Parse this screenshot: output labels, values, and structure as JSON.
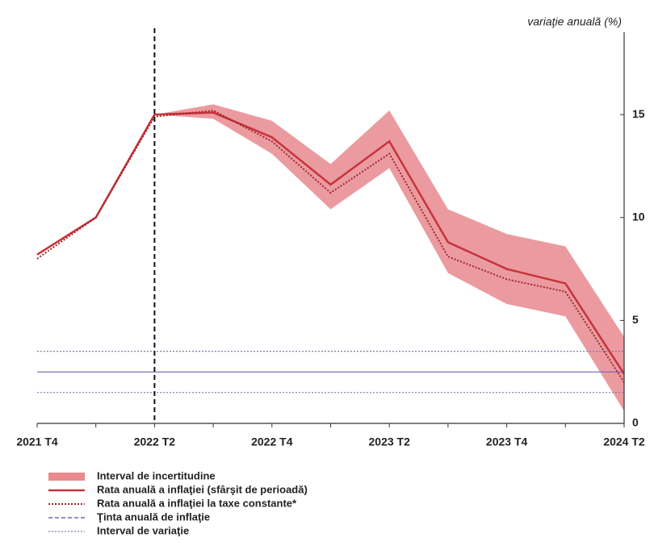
{
  "chart_data": {
    "type": "line",
    "y_axis_label": "variaţie anuală (%)",
    "categories": [
      "2021 T4",
      null,
      "2022 T2",
      null,
      "2022 T4",
      null,
      "2023 T2",
      null,
      "2023 T4",
      null,
      "2024 T2"
    ],
    "ylim": [
      0,
      19
    ],
    "yticks": [
      0,
      5,
      10,
      15
    ],
    "vline": "2022 T2",
    "band": {
      "name": "Interval de incertitudine",
      "color": "#e88a8e",
      "upper": [
        null,
        null,
        15.0,
        15.5,
        14.7,
        12.6,
        15.2,
        10.4,
        9.2,
        8.6,
        4.2
      ],
      "lower": [
        null,
        null,
        15.0,
        14.8,
        13.1,
        10.4,
        12.4,
        7.3,
        5.8,
        5.2,
        0.6
      ]
    },
    "series": [
      {
        "name": "Rata anuală a inflaţiei (sfârşit de perioadă)",
        "color": "#c8323c",
        "style": "solid",
        "values": [
          8.2,
          10.0,
          15.0,
          15.1,
          13.9,
          11.6,
          13.7,
          8.8,
          7.5,
          6.8,
          2.4
        ]
      },
      {
        "name": "Rata anuală a inflaţiei la taxe constante*",
        "color": "#a0282e",
        "style": "dotted",
        "values": [
          8.0,
          10.0,
          14.9,
          15.2,
          13.7,
          11.2,
          13.1,
          8.1,
          7.0,
          6.4,
          2.0
        ]
      }
    ],
    "target": {
      "name": "Ţinta anuală de inflaţie",
      "color": "#6a6ab8",
      "value": 2.5
    },
    "interval": {
      "name": "Interval de variaţie",
      "color": "#7a7ab8",
      "values": [
        1.5,
        3.5
      ]
    }
  }
}
